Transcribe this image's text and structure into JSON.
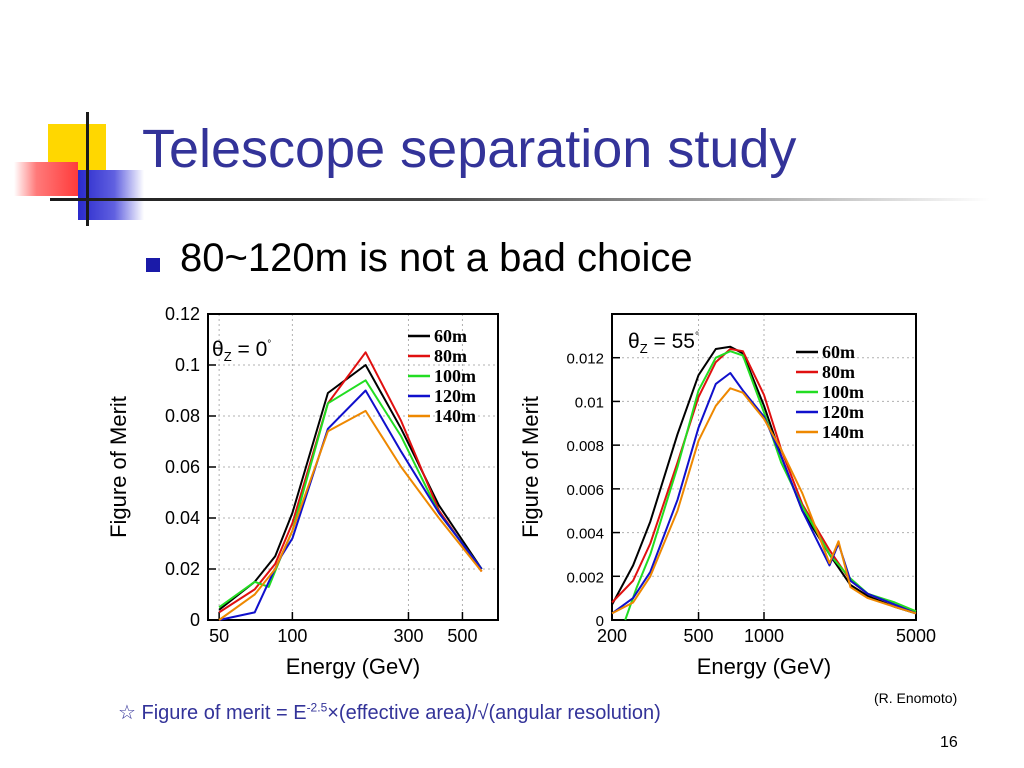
{
  "slide": {
    "title": "Telescope separation study",
    "bullet": "80~120m is not a bad choice",
    "footnote": {
      "star": "☆",
      "prefix": " Figure of merit = E",
      "exponent": "-2.5",
      "suffix": "×(effective area)/√(angular resolution)"
    },
    "credit": "(R. Enomoto)",
    "page_number": "16"
  },
  "colors": {
    "title": "#333399",
    "60m": "#000000",
    "80m": "#e01010",
    "100m": "#22dd22",
    "120m": "#1010cc",
    "140m": "#ee8800"
  },
  "chart_data": [
    {
      "type": "line",
      "annotation": {
        "symbol": "θ",
        "subscript": "Z",
        "text": " = 0",
        "degree": "°"
      },
      "xlabel": "Energy (GeV)",
      "ylabel": "Figure of Merit",
      "xscale": "log",
      "xlim": [
        45,
        700
      ],
      "ylim": [
        0,
        0.12
      ],
      "xticks": [
        50,
        100,
        300,
        500
      ],
      "yticks": [
        0,
        0.02,
        0.04,
        0.06,
        0.08,
        0.1,
        0.12
      ],
      "ytick_labels": [
        "0",
        "0.02",
        "0.04",
        "0.06",
        "0.08",
        "0.1",
        "0.12"
      ],
      "grid": true,
      "legend_position": "top-right",
      "series": [
        {
          "name": "60m",
          "color": "#000000",
          "x": [
            50,
            70,
            85,
            100,
            140,
            200,
            280,
            400,
            600
          ],
          "y": [
            0.004,
            0.015,
            0.025,
            0.042,
            0.089,
            0.1,
            0.075,
            0.045,
            0.02
          ]
        },
        {
          "name": "80m",
          "color": "#e01010",
          "x": [
            50,
            70,
            85,
            100,
            140,
            200,
            280,
            400,
            600
          ],
          "y": [
            0.003,
            0.012,
            0.022,
            0.038,
            0.085,
            0.105,
            0.078,
            0.043,
            0.019
          ]
        },
        {
          "name": "100m",
          "color": "#22dd22",
          "x": [
            50,
            70,
            80,
            90,
            100,
            140,
            200,
            280,
            400,
            600
          ],
          "y": [
            0.005,
            0.015,
            0.013,
            0.025,
            0.035,
            0.085,
            0.094,
            0.072,
            0.042,
            0.02
          ]
        },
        {
          "name": "120m",
          "color": "#1010cc",
          "x": [
            50,
            70,
            80,
            90,
            100,
            140,
            200,
            280,
            400,
            600
          ],
          "y": [
            0.0,
            0.003,
            0.015,
            0.025,
            0.032,
            0.075,
            0.09,
            0.066,
            0.042,
            0.02
          ]
        },
        {
          "name": "140m",
          "color": "#ee8800",
          "x": [
            50,
            70,
            85,
            100,
            140,
            200,
            280,
            400,
            600
          ],
          "y": [
            0.0,
            0.01,
            0.02,
            0.035,
            0.074,
            0.082,
            0.06,
            0.04,
            0.019
          ]
        }
      ]
    },
    {
      "type": "line",
      "annotation": {
        "symbol": "θ",
        "subscript": "Z",
        "text": " = 55",
        "degree": "°"
      },
      "xlabel": "Energy (GeV)",
      "ylabel": "Figure of Merit",
      "xscale": "log",
      "xlim": [
        200,
        5000
      ],
      "ylim": [
        0,
        0.014
      ],
      "xticks": [
        200,
        500,
        1000,
        5000
      ],
      "yticks": [
        0,
        0.002,
        0.004,
        0.006,
        0.008,
        0.01,
        0.012
      ],
      "ytick_labels": [
        "0",
        "0.002",
        "0.004",
        "0.006",
        "0.008",
        "0.01",
        "0.012"
      ],
      "grid": true,
      "legend_position": "top-right",
      "series": [
        {
          "name": "60m",
          "color": "#000000",
          "x": [
            200,
            250,
            300,
            400,
            500,
            600,
            700,
            800,
            1000,
            1200,
            1500,
            2000,
            2500,
            3000,
            4000,
            5000
          ],
          "y": [
            0.0007,
            0.0025,
            0.0045,
            0.0085,
            0.0112,
            0.0124,
            0.0125,
            0.0122,
            0.0098,
            0.0075,
            0.005,
            0.003,
            0.0016,
            0.0011,
            0.0006,
            0.0003
          ]
        },
        {
          "name": "80m",
          "color": "#e01010",
          "x": [
            200,
            250,
            300,
            400,
            500,
            600,
            700,
            800,
            1000,
            1200,
            1500,
            2000,
            2500,
            3000,
            4000,
            5000
          ],
          "y": [
            0.0008,
            0.0018,
            0.0035,
            0.0072,
            0.0102,
            0.0118,
            0.0124,
            0.0123,
            0.0103,
            0.0078,
            0.0053,
            0.0032,
            0.0018,
            0.0012,
            0.0007,
            0.0004
          ]
        },
        {
          "name": "100m",
          "color": "#22dd22",
          "x": [
            230,
            260,
            300,
            400,
            500,
            600,
            700,
            800,
            1000,
            1200,
            1500,
            2000,
            2500,
            3000,
            4000,
            5000
          ],
          "y": [
            0.0,
            0.0015,
            0.003,
            0.007,
            0.0105,
            0.012,
            0.0123,
            0.0121,
            0.0095,
            0.0072,
            0.0052,
            0.003,
            0.0019,
            0.0012,
            0.0008,
            0.0004
          ]
        },
        {
          "name": "120m",
          "color": "#1010cc",
          "x": [
            200,
            250,
            300,
            400,
            500,
            600,
            700,
            800,
            1000,
            1200,
            1500,
            2000,
            2200,
            2500,
            3000,
            4000,
            5000
          ],
          "y": [
            0.0003,
            0.001,
            0.0022,
            0.0055,
            0.0088,
            0.0108,
            0.0113,
            0.0105,
            0.0093,
            0.0075,
            0.005,
            0.0025,
            0.0035,
            0.0018,
            0.0012,
            0.0007,
            0.0003
          ]
        },
        {
          "name": "140m",
          "color": "#ee8800",
          "x": [
            200,
            250,
            300,
            400,
            500,
            600,
            700,
            800,
            1000,
            1200,
            1500,
            2000,
            2200,
            2500,
            3000,
            4000,
            5000
          ],
          "y": [
            0.0003,
            0.0008,
            0.002,
            0.005,
            0.0082,
            0.0098,
            0.0106,
            0.0104,
            0.0092,
            0.0078,
            0.0058,
            0.0026,
            0.0036,
            0.0015,
            0.001,
            0.0006,
            0.0003
          ]
        }
      ]
    }
  ]
}
